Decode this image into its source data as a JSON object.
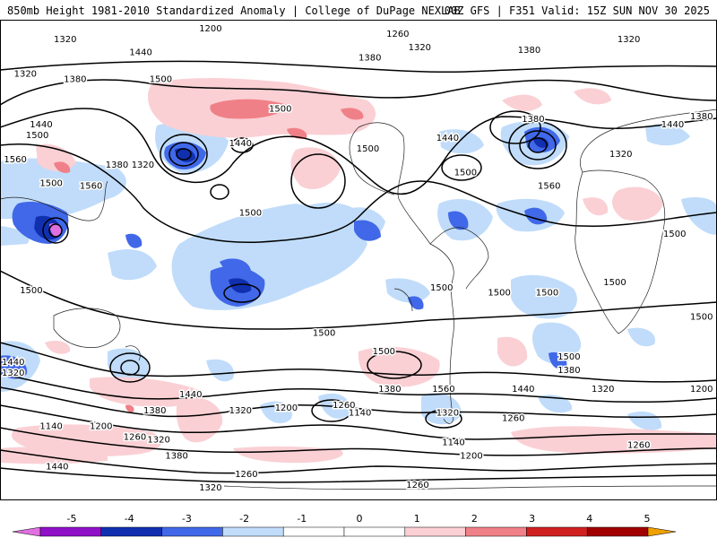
{
  "header": {
    "title": "850mb Height 1981-2010 Standardized Anomaly | College of DuPage NEXLAB",
    "run_info": "00Z GFS | F351 Valid: 15Z SUN NOV 30 2025"
  },
  "colors": {
    "neg5": "#e070e0",
    "neg4": "#9010c8",
    "neg3": "#1030b0",
    "neg2": "#4068e8",
    "neg1": "#c0dcfa",
    "pos1": "#fad0d4",
    "pos2": "#f08088",
    "pos3": "#d02020",
    "pos4": "#a00000",
    "pos5": "#f0a000"
  },
  "colorbar": {
    "ticks": [
      "-5",
      "-4",
      "-3",
      "-2",
      "-1",
      "0",
      "1",
      "2",
      "3",
      "4",
      "5"
    ]
  },
  "contour_labels": [
    {
      "text": "1200",
      "lon": -80,
      "lat": 87
    },
    {
      "text": "1260",
      "lon": 14,
      "lat": 85
    },
    {
      "text": "1320",
      "lon": -153,
      "lat": 83
    },
    {
      "text": "1320",
      "lon": 25,
      "lat": 80
    },
    {
      "text": "1320",
      "lon": 130,
      "lat": 83
    },
    {
      "text": "1440",
      "lon": -115,
      "lat": 78
    },
    {
      "text": "1380",
      "lon": 0,
      "lat": 76
    },
    {
      "text": "1380",
      "lon": 80,
      "lat": 79
    },
    {
      "text": "1320",
      "lon": -173,
      "lat": 70
    },
    {
      "text": "1380",
      "lon": -148,
      "lat": 68
    },
    {
      "text": "1500",
      "lon": -105,
      "lat": 68
    },
    {
      "text": "1500",
      "lon": -45,
      "lat": 57
    },
    {
      "text": "1440",
      "lon": -165,
      "lat": 51
    },
    {
      "text": "1500",
      "lon": -167,
      "lat": 47
    },
    {
      "text": "1560",
      "lon": -178,
      "lat": 38
    },
    {
      "text": "1380",
      "lon": -127,
      "lat": 36
    },
    {
      "text": "1320",
      "lon": -114,
      "lat": 36
    },
    {
      "text": "1440",
      "lon": -65,
      "lat": 44
    },
    {
      "text": "1500",
      "lon": -1,
      "lat": 42
    },
    {
      "text": "1440",
      "lon": 39,
      "lat": 46
    },
    {
      "text": "1500",
      "lon": 48,
      "lat": 33
    },
    {
      "text": "1380",
      "lon": 82,
      "lat": 53
    },
    {
      "text": "1320",
      "lon": 126,
      "lat": 40
    },
    {
      "text": "1440",
      "lon": 152,
      "lat": 51
    },
    {
      "text": "1380",
      "lon": 170,
      "lat": 54
    },
    {
      "text": "1560",
      "lon": -140,
      "lat": 28
    },
    {
      "text": "1560",
      "lon": 90,
      "lat": 28
    },
    {
      "text": "1500",
      "lon": -160,
      "lat": 29
    },
    {
      "text": "1500",
      "lon": -60,
      "lat": 18
    },
    {
      "text": "1500",
      "lon": 153,
      "lat": 10
    },
    {
      "text": "1500",
      "lon": -170,
      "lat": -11
    },
    {
      "text": "1500",
      "lon": 36,
      "lat": -10
    },
    {
      "text": "1500",
      "lon": 65,
      "lat": -12
    },
    {
      "text": "1500",
      "lon": 89,
      "lat": -12
    },
    {
      "text": "1500",
      "lon": 123,
      "lat": -8
    },
    {
      "text": "1500",
      "lon": 178,
      "lat": -21
    },
    {
      "text": "1500",
      "lon": -23,
      "lat": -27
    },
    {
      "text": "1500",
      "lon": 7,
      "lat": -34
    },
    {
      "text": "1500",
      "lon": 100,
      "lat": -36
    },
    {
      "text": "1380",
      "lon": 100,
      "lat": -41
    },
    {
      "text": "1440",
      "lon": -180,
      "lat": -38
    },
    {
      "text": "1320",
      "lon": -180,
      "lat": -42
    },
    {
      "text": "1440",
      "lon": -90,
      "lat": -50
    },
    {
      "text": "1380",
      "lon": -108,
      "lat": -56
    },
    {
      "text": "1320",
      "lon": -65,
      "lat": -56
    },
    {
      "text": "1200",
      "lon": -42,
      "lat": -55
    },
    {
      "text": "1260",
      "lon": -13,
      "lat": -54
    },
    {
      "text": "1140",
      "lon": -5,
      "lat": -57
    },
    {
      "text": "1380",
      "lon": 10,
      "lat": -48
    },
    {
      "text": "1560",
      "lon": 37,
      "lat": -48
    },
    {
      "text": "1320",
      "lon": 39,
      "lat": -57
    },
    {
      "text": "1440",
      "lon": 77,
      "lat": -48
    },
    {
      "text": "1320",
      "lon": 117,
      "lat": -48
    },
    {
      "text": "1200",
      "lon": 167,
      "lat": -48
    },
    {
      "text": "1260",
      "lon": 72,
      "lat": -59
    },
    {
      "text": "1140",
      "lon": -160,
      "lat": -62
    },
    {
      "text": "1200",
      "lon": -135,
      "lat": -62
    },
    {
      "text": "1260",
      "lon": -118,
      "lat": -66
    },
    {
      "text": "1320",
      "lon": -106,
      "lat": -67
    },
    {
      "text": "1380",
      "lon": -97,
      "lat": -73
    },
    {
      "text": "1440",
      "lon": -157,
      "lat": -77
    },
    {
      "text": "1140",
      "lon": 42,
      "lat": -68
    },
    {
      "text": "1200",
      "lon": 51,
      "lat": -73
    },
    {
      "text": "1260",
      "lon": 135,
      "lat": -69
    },
    {
      "text": "1260",
      "lon": -62,
      "lat": -80
    },
    {
      "text": "1320",
      "lon": -80,
      "lat": -85
    },
    {
      "text": "1260",
      "lon": 24,
      "lat": -84
    }
  ]
}
